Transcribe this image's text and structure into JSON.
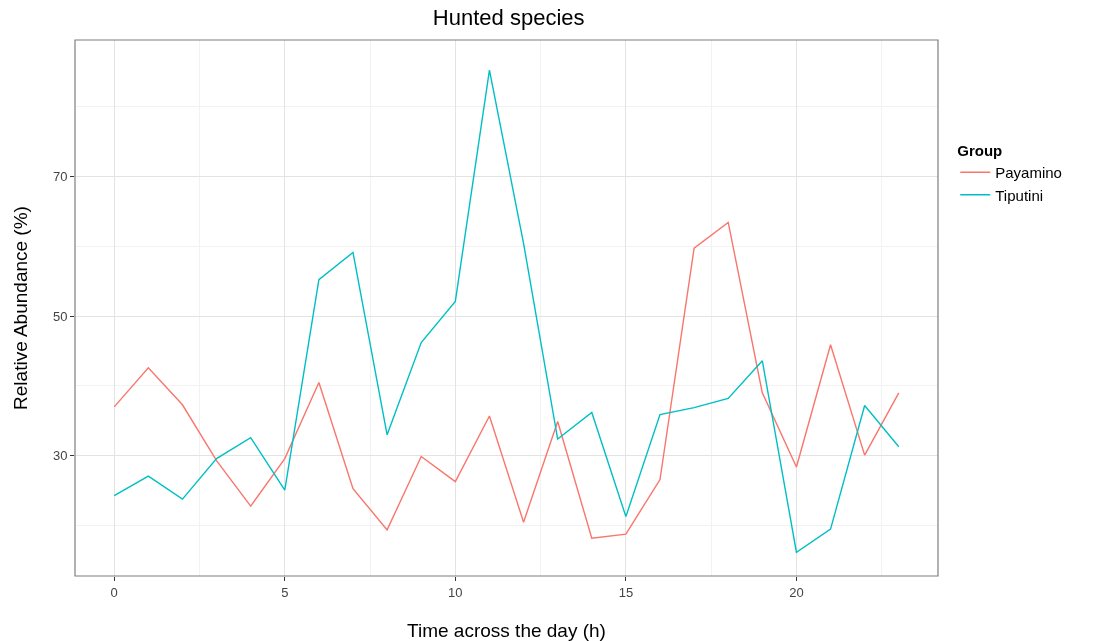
{
  "chart_data": {
    "type": "line",
    "title": "Hunted species",
    "xlabel": "Time across the day (h)",
    "ylabel": "Relative Abundance (%)",
    "legend_title": "Group",
    "x": [
      0,
      1,
      2,
      3,
      4,
      5,
      6,
      7,
      8,
      9,
      10,
      11,
      12,
      13,
      14,
      15,
      16,
      17,
      18,
      19,
      20,
      21,
      22,
      23
    ],
    "series": [
      {
        "name": "Payamino",
        "color": "#f8766d",
        "values": [
          37.0,
          42.6,
          37.3,
          29.3,
          22.8,
          29.6,
          40.5,
          25.3,
          19.4,
          29.9,
          26.3,
          35.7,
          20.5,
          34.9,
          18.2,
          18.8,
          26.6,
          59.7,
          63.4,
          39.0,
          28.4,
          45.9,
          30.1,
          39.0
        ]
      },
      {
        "name": "Tiputini",
        "color": "#00bfc4",
        "values": [
          24.3,
          27.1,
          23.8,
          29.6,
          32.6,
          25.1,
          55.2,
          59.1,
          33.0,
          46.2,
          52.1,
          85.2,
          60.4,
          32.4,
          36.2,
          21.3,
          35.9,
          36.9,
          38.2,
          43.6,
          16.2,
          19.5,
          37.2,
          31.3
        ]
      }
    ],
    "xlim": [
      -1.15,
      24.15
    ],
    "ylim": [
      12.8,
      89.5
    ],
    "xticks": [
      0,
      5,
      10,
      15,
      20
    ],
    "yticks": [
      30,
      50,
      70
    ],
    "grid": true,
    "legend": "right",
    "marker": "none",
    "line_style": "solid"
  }
}
